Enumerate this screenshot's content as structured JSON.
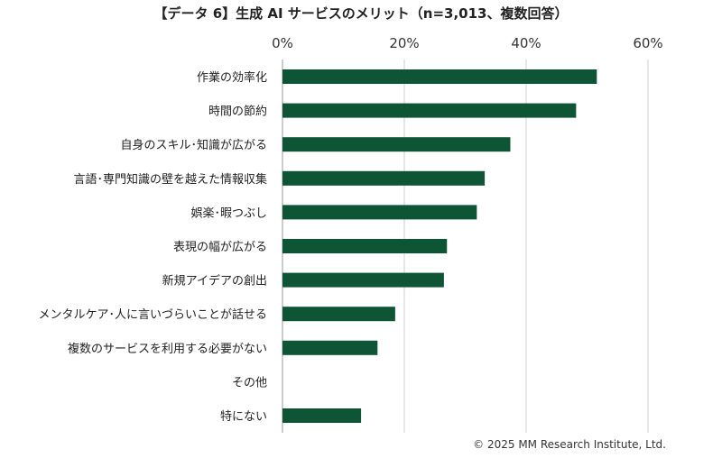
{
  "chart_data": {
    "type": "bar",
    "orientation": "horizontal",
    "title": "【データ 6】生成 AI サービスのメリット（n=3,013、複数回答）",
    "xlabel": "",
    "ylabel": "",
    "xlim": [
      0,
      60
    ],
    "ticks": [
      "0%",
      "20%",
      "40%",
      "60%"
    ],
    "tick_values": [
      0,
      20,
      40,
      60
    ],
    "grid": "vertical",
    "legend": "none",
    "bar_color": "#0e5535",
    "categories": [
      "作業の効率化",
      "時間の節約",
      "自身のスキル･知識が広がる",
      "言語･専門知識の壁を越えた情報収集",
      "娯楽･暇つぶし",
      "表現の幅が広がる",
      "新規アイデアの創出",
      "メンタルケア･人に言いづらいことが話せる",
      "複数のサービスを利用する必要がない",
      "その他",
      "特にない"
    ],
    "values": [
      51.6,
      48.2,
      37.4,
      33.2,
      31.9,
      27.0,
      26.5,
      18.5,
      15.6,
      0.0,
      12.9
    ]
  },
  "footer": {
    "copyright": "© 2025 MM Research Institute, Ltd."
  }
}
